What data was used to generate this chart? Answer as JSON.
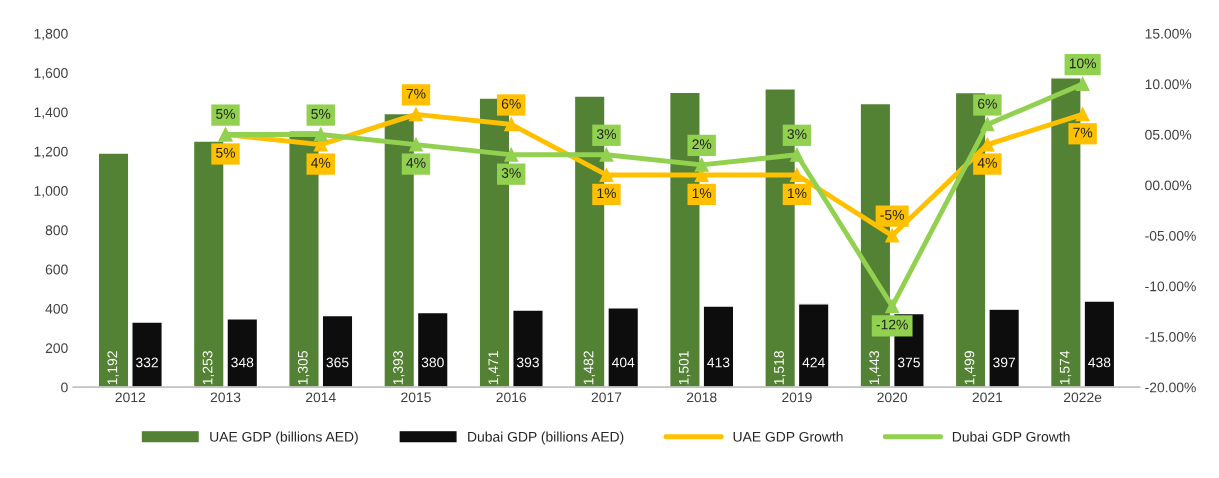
{
  "chart_data": {
    "type": "bar",
    "categories": [
      "2012",
      "2013",
      "2014",
      "2015",
      "2016",
      "2017",
      "2018",
      "2019",
      "2020",
      "2021",
      "2022e"
    ],
    "series": [
      {
        "name": "UAE GDP (billions AED)",
        "color": "#548235",
        "values": [
          1192,
          1253,
          1305,
          1393,
          1471,
          1482,
          1501,
          1518,
          1443,
          1499,
          1574
        ],
        "value_labels": [
          "1,192",
          "1,253",
          "1,305",
          "1,393",
          "1,471",
          "1,482",
          "1,501",
          "1,518",
          "1,443",
          "1,499",
          "1,574"
        ]
      },
      {
        "name": "Dubai GDP (billions AED)",
        "color": "#0d0d0d",
        "values": [
          332,
          348,
          365,
          380,
          393,
          404,
          413,
          424,
          375,
          397,
          438
        ],
        "value_labels": [
          "332",
          "348",
          "365",
          "380",
          "393",
          "404",
          "413",
          "424",
          "375",
          "397",
          "438"
        ]
      },
      {
        "name": "UAE GDP Growth",
        "type": "line",
        "axis": "y2",
        "color": "#ffc000",
        "marker": "triangle",
        "values": [
          null,
          5,
          4,
          7,
          6,
          1,
          1,
          1,
          -5,
          4,
          7
        ],
        "value_labels": [
          null,
          "5%",
          "4%",
          "7%",
          "6%",
          "1%",
          "1%",
          "1%",
          "-5%",
          "4%",
          "7%"
        ]
      },
      {
        "name": "Dubai GDP Growth",
        "type": "line",
        "axis": "y2",
        "color": "#92d050",
        "marker": "triangle",
        "values": [
          null,
          5,
          5,
          4,
          3,
          3,
          2,
          3,
          -12,
          6,
          10
        ],
        "value_labels": [
          null,
          "5%",
          "5%",
          "4%",
          "3%",
          "3%",
          "2%",
          "3%",
          "-12%",
          "6%",
          "10%"
        ]
      }
    ],
    "ylim": [
      0,
      1800
    ],
    "yticks": [
      0,
      {
        "value": 200,
        "label": "200"
      },
      {
        "value": 400,
        "label": "400"
      },
      {
        "value": 600,
        "label": "600"
      },
      {
        "value": 800,
        "label": "800"
      },
      {
        "value": 1000,
        "label": "1,000"
      },
      {
        "value": 1200,
        "label": "1,200"
      },
      {
        "value": 1400,
        "label": "1,400"
      },
      {
        "value": 1600,
        "label": "1,600"
      },
      {
        "value": 1800,
        "label": "1,800"
      }
    ],
    "y2lim": [
      -20,
      15
    ],
    "y2ticks": [
      {
        "value": -20,
        "label": "-20.00%"
      },
      {
        "value": -15,
        "label": "-15.00%"
      },
      {
        "value": -10,
        "label": "-10.00%"
      },
      {
        "value": -5,
        "label": "-05.00%"
      },
      {
        "value": 0,
        "label": "00.00%"
      },
      {
        "value": 5,
        "label": "05.00%"
      },
      {
        "value": 10,
        "label": "10.00%"
      },
      {
        "value": 15,
        "label": "15.00%"
      }
    ],
    "grid": false,
    "legend": "bottom",
    "line_style": "solid"
  }
}
